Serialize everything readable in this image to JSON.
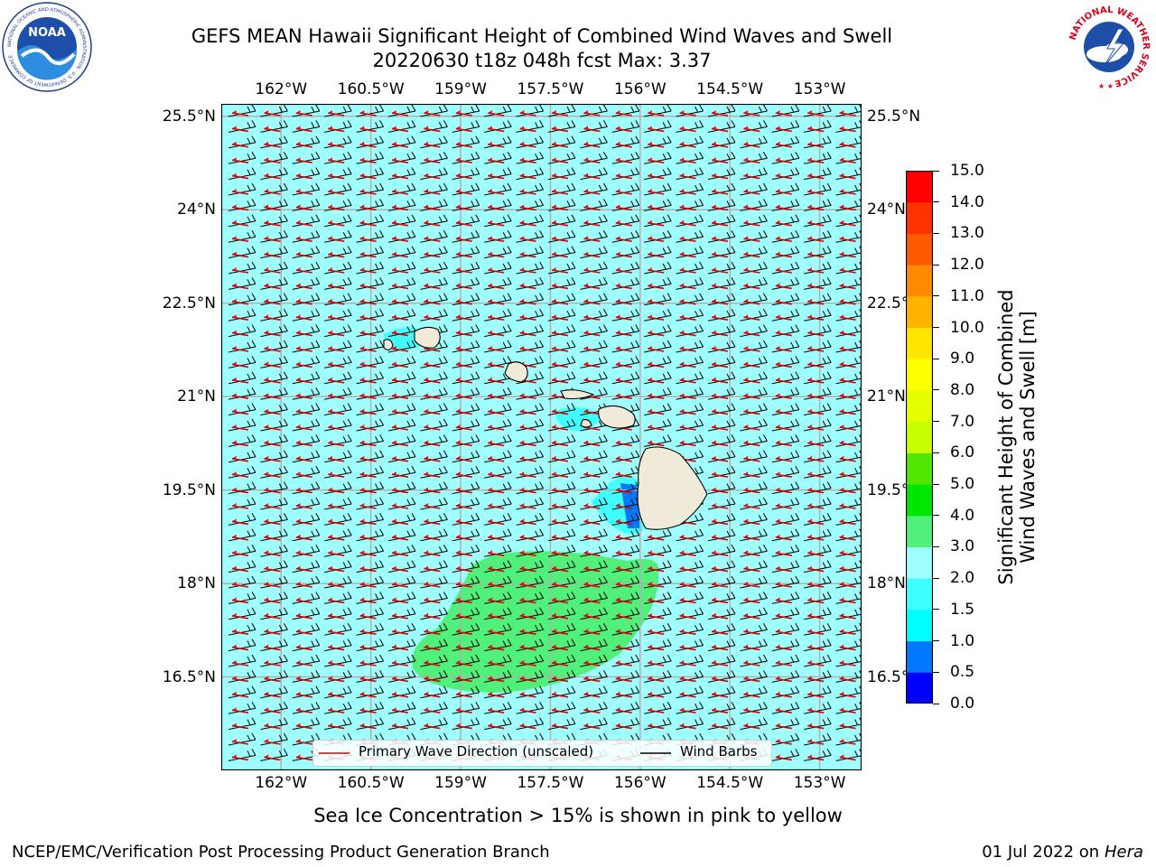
{
  "title": {
    "line1": "GEFS MEAN Hawaii Significant Height of Combined Wind Waves and Swell",
    "line2": "20220630 t18z 048h fcst   Max: 3.37"
  },
  "logos": {
    "noaa_text": "NOAA",
    "noaa_ring": "NATIONAL OCEANIC AND ATMOSPHERIC ADMINISTRATION · U.S. DEPARTMENT OF COMMERCE",
    "nws_ring": "NATIONAL WEATHER SERVICE"
  },
  "map": {
    "lon_ticks": [
      "162°W",
      "160.5°W",
      "159°W",
      "157.5°W",
      "156°W",
      "154.5°W",
      "153°W"
    ],
    "lon_values": [
      -162,
      -160.5,
      -159,
      -157.5,
      -156,
      -154.5,
      -153
    ],
    "lat_ticks": [
      "25.5°N",
      "24°N",
      "22.5°N",
      "21°N",
      "19.5°N",
      "18°N",
      "16.5°N"
    ],
    "lat_values": [
      25.5,
      24,
      22.5,
      21,
      19.5,
      18,
      16.5
    ],
    "lon_range": [
      -163,
      -152.3
    ],
    "lat_range": [
      15,
      25.7
    ],
    "background_color": "#9ffffe",
    "land_color": "#f0ebd8",
    "wave_arrow_color": "#e00000",
    "barb_color": "#000000",
    "green_region_color": "#50f07a",
    "legend": {
      "wave": "Primary Wave Direction (unscaled)",
      "barbs": "Wind Barbs"
    }
  },
  "colorbar": {
    "label_line1": "Significant Height of Combined",
    "label_line2": "Wind Waves and Swell [m]",
    "ticks": [
      "0.0",
      "0.5",
      "1.0",
      "1.5",
      "2.0",
      "3.0",
      "4.0",
      "5.0",
      "6.0",
      "7.0",
      "8.0",
      "9.0",
      "10.0",
      "11.0",
      "12.0",
      "13.0",
      "14.0",
      "15.0"
    ],
    "colors": [
      "#0000ff",
      "#0078ff",
      "#00ffff",
      "#40ffff",
      "#9ffffe",
      "#50f07a",
      "#00e600",
      "#50e600",
      "#c8ff00",
      "#e6ff00",
      "#ffff00",
      "#ffe600",
      "#ffb400",
      "#ff8c00",
      "#ff5a00",
      "#ff3200",
      "#ff0000"
    ]
  },
  "sea_ice_note": "Sea Ice Concentration > 15% is shown in pink to yellow",
  "footer": {
    "left": "NCEP/EMC/Verification Post Processing Product Generation Branch",
    "right_date": "01 Jul 2022 on ",
    "right_host": "Hera"
  }
}
